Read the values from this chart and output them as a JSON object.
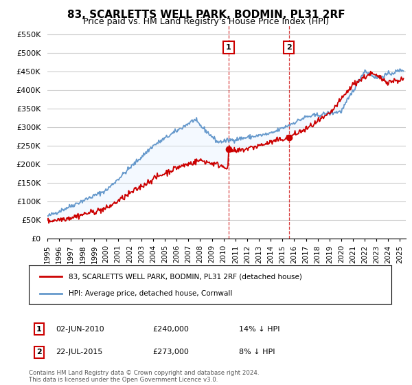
{
  "title": "83, SCARLETTS WELL PARK, BODMIN, PL31 2RF",
  "subtitle": "Price paid vs. HM Land Registry's House Price Index (HPI)",
  "ylabel_ticks": [
    "£0",
    "£50K",
    "£100K",
    "£150K",
    "£200K",
    "£250K",
    "£300K",
    "£350K",
    "£400K",
    "£450K",
    "£500K",
    "£550K"
  ],
  "ytick_values": [
    0,
    50000,
    100000,
    150000,
    200000,
    250000,
    300000,
    350000,
    400000,
    450000,
    500000,
    550000
  ],
  "ylim": [
    0,
    575000
  ],
  "xlim_start": 1995.0,
  "xlim_end": 2025.5,
  "sale1_x": 2010.42,
  "sale1_y": 240000,
  "sale1_label": "1",
  "sale1_date": "02-JUN-2010",
  "sale1_price": "£240,000",
  "sale1_hpi": "14% ↓ HPI",
  "sale2_x": 2015.55,
  "sale2_y": 273000,
  "sale2_label": "2",
  "sale2_date": "22-JUL-2015",
  "sale2_price": "£273,000",
  "sale2_hpi": "8% ↓ HPI",
  "legend_line1": "83, SCARLETTS WELL PARK, BODMIN, PL31 2RF (detached house)",
  "legend_line2": "HPI: Average price, detached house, Cornwall",
  "footer": "Contains HM Land Registry data © Crown copyright and database right 2024.\nThis data is licensed under the Open Government Licence v3.0.",
  "red_color": "#cc0000",
  "blue_color": "#6699cc",
  "shading_color": "#ddeeff",
  "bg_color": "#ffffff",
  "grid_color": "#cccccc"
}
